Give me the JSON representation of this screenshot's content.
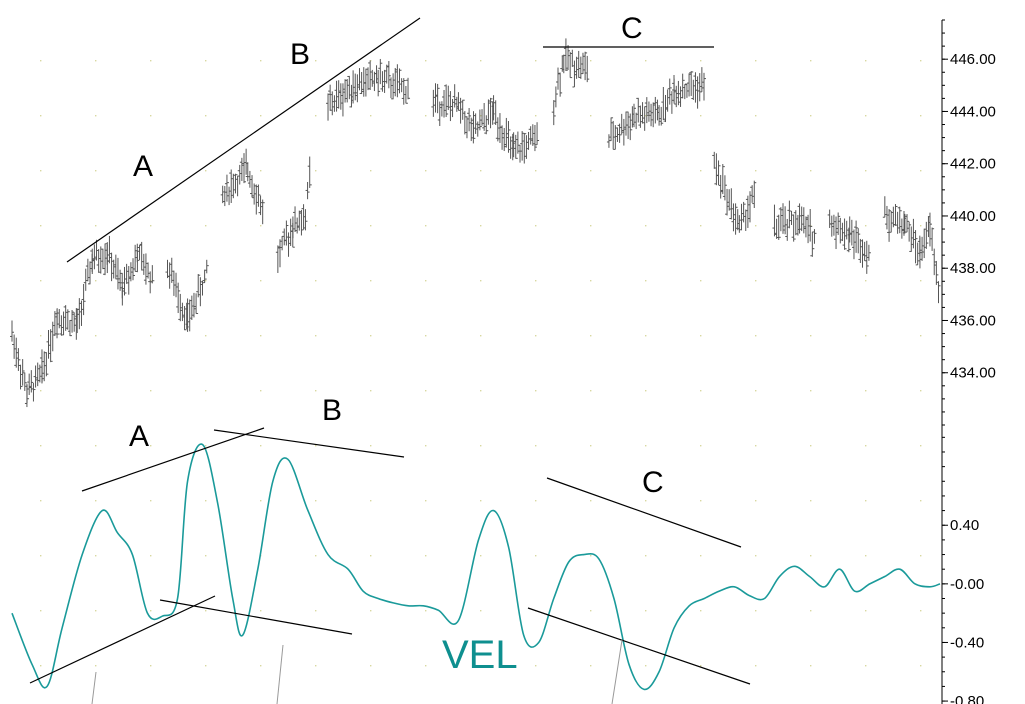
{
  "chart_data": [
    {
      "type": "ohlc",
      "panel": "price",
      "ylim": [
        432.0,
        447.5
      ],
      "y_ticks": [
        434,
        436,
        438,
        440,
        442,
        444,
        446
      ],
      "tick_labels": [
        "434.00",
        "436.00",
        "438.00",
        "440.00",
        "442.00",
        "444.00",
        "446.00"
      ],
      "bar_color": "#555555",
      "x_range": [
        0,
        330
      ],
      "segments": [
        [
          0,
          435.5
        ],
        [
          6,
          433.2
        ],
        [
          12,
          434.0
        ],
        [
          18,
          436.2
        ],
        [
          26,
          435.8
        ],
        [
          32,
          438.3
        ],
        [
          38,
          438.6
        ],
        [
          44,
          437.2
        ],
        [
          50,
          438.5
        ],
        [
          56,
          437.6
        ],
        [
          61,
          null
        ],
        [
          62,
          438.1
        ],
        [
          70,
          436.0
        ],
        [
          78,
          437.9
        ],
        [
          82,
          null
        ],
        [
          84,
          440.8
        ],
        [
          94,
          441.8
        ],
        [
          100,
          440.2
        ],
        [
          104,
          null
        ],
        [
          106,
          438.4
        ],
        [
          112,
          439.6
        ],
        [
          117,
          440.0
        ],
        [
          119,
          441.8
        ],
        [
          124,
          null
        ],
        [
          126,
          444.2
        ],
        [
          136,
          445.0
        ],
        [
          146,
          445.3
        ],
        [
          158,
          444.8
        ],
        [
          166,
          null
        ],
        [
          168,
          444.4
        ],
        [
          178,
          444.2
        ],
        [
          184,
          443.2
        ],
        [
          192,
          444.0
        ],
        [
          200,
          442.4
        ],
        [
          210,
          443.0
        ],
        [
          214,
          null
        ],
        [
          216,
          444.4
        ],
        [
          220,
          446.0
        ],
        [
          230,
          445.6
        ],
        [
          236,
          null
        ],
        [
          238,
          442.9
        ],
        [
          248,
          443.8
        ],
        [
          258,
          443.9
        ],
        [
          264,
          444.8
        ],
        [
          276,
          445.0
        ],
        [
          278,
          null
        ],
        [
          280,
          442.0
        ],
        [
          290,
          439.6
        ],
        [
          296,
          440.8
        ],
        [
          302,
          null
        ],
        [
          304,
          439.6
        ],
        [
          314,
          439.8
        ],
        [
          320,
          439.2
        ],
        [
          324,
          null
        ],
        [
          326,
          439.8
        ],
        [
          334,
          439.3
        ],
        [
          342,
          438.6
        ],
        [
          346,
          null
        ],
        [
          348,
          440.0
        ],
        [
          356,
          439.7
        ],
        [
          362,
          438.6
        ],
        [
          366,
          439.5
        ],
        [
          370,
          436.8
        ]
      ]
    },
    {
      "type": "line",
      "panel": "VEL",
      "ylim": [
        -0.82,
        1.05
      ],
      "y_ticks": [
        0.4,
        0.0,
        -0.4,
        -0.8
      ],
      "tick_labels": [
        "0.40",
        "-0.00",
        "-0.40",
        "-0.80"
      ],
      "line_color": "#1a9a9a",
      "x_range": [
        0,
        370
      ],
      "series": [
        {
          "x": [
            0,
            8,
            14,
            20,
            28,
            36,
            42,
            48,
            54,
            60,
            66,
            70,
            76,
            82,
            88,
            92,
            98,
            104,
            110,
            118,
            126,
            134,
            140,
            146,
            152,
            158,
            164,
            170,
            178,
            186,
            192,
            198,
            204,
            210,
            216,
            222,
            228,
            234,
            240,
            246,
            252,
            258,
            264,
            270,
            276,
            282,
            288,
            294,
            300,
            306,
            312,
            318,
            324,
            330,
            336,
            342,
            348,
            354,
            360,
            366,
            370
          ],
          "values": [
            -0.2,
            -0.55,
            -0.7,
            -0.3,
            0.2,
            0.5,
            0.35,
            0.2,
            -0.2,
            -0.22,
            -0.1,
            0.7,
            0.95,
            0.55,
            -0.1,
            -0.35,
            0.1,
            0.7,
            0.85,
            0.5,
            0.2,
            0.1,
            -0.05,
            -0.1,
            -0.13,
            -0.15,
            -0.15,
            -0.18,
            -0.25,
            0.3,
            0.5,
            0.25,
            -0.35,
            -0.4,
            -0.1,
            0.15,
            0.2,
            0.17,
            -0.1,
            -0.55,
            -0.72,
            -0.6,
            -0.3,
            -0.15,
            -0.1,
            -0.05,
            -0.02,
            -0.08,
            -0.1,
            0.05,
            0.12,
            0.05,
            -0.02,
            0.1,
            -0.05,
            0.0,
            0.05,
            0.1,
            0.0,
            -0.02,
            0.0
          ]
        }
      ],
      "series_label": "VEL"
    }
  ],
  "annotations": {
    "price_labels": [
      "A",
      "B",
      "C"
    ],
    "vel_labels": [
      "A",
      "B",
      "C"
    ],
    "vel_title": "VEL"
  }
}
